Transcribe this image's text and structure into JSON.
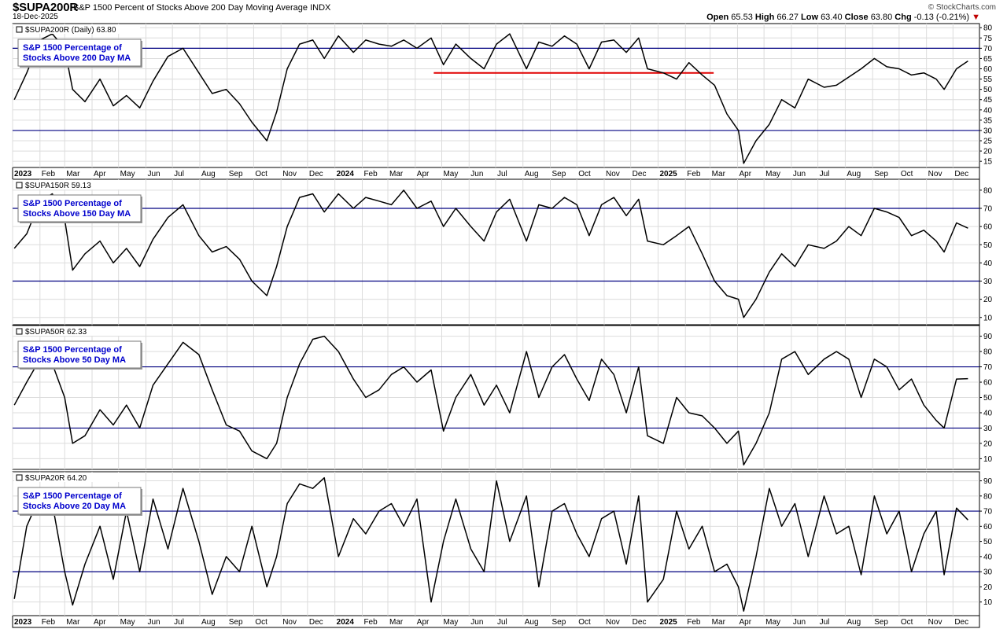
{
  "header": {
    "symbol": "$SUPA200R",
    "description": "S&P 1500 Percent of Stocks Above 200 Day Moving Average",
    "exchange": "INDX",
    "date": "18-Dec-2025",
    "source": "© StockCharts.com",
    "open_label": "Open",
    "open": "65.53",
    "high_label": "High",
    "high": "66.27",
    "low_label": "Low",
    "low": "63.40",
    "close_label": "Close",
    "close": "63.80",
    "chg_label": "Chg",
    "chg": "-0.13 (-0.21%)"
  },
  "colors": {
    "line": "#000000",
    "hline": "#000080",
    "grid": "#dcdcdc",
    "trend": "#e00000",
    "label_text": "#0000cc"
  },
  "chart_data": [
    {
      "type": "line",
      "panel_label": "$SUPA200R (Daily) 63.80",
      "annotation": [
        "S&P 1500 Percentage of",
        "Stocks Above 200 Day MA"
      ],
      "y_ticks": [
        15,
        20,
        25,
        30,
        35,
        40,
        45,
        50,
        55,
        60,
        65,
        70,
        75,
        80
      ],
      "ylim": [
        12,
        82
      ],
      "hlines": [
        30,
        70
      ],
      "trendline": {
        "x": [
          "2024-04-22",
          "2025-03-05"
        ],
        "y": [
          58,
          58
        ]
      },
      "x": [
        "2023-01-03",
        "2023-01-17",
        "2023-02-01",
        "2023-02-15",
        "2023-03-01",
        "2023-03-10",
        "2023-03-24",
        "2023-04-10",
        "2023-04-25",
        "2023-05-10",
        "2023-05-25",
        "2023-06-09",
        "2023-06-26",
        "2023-07-13",
        "2023-07-31",
        "2023-08-15",
        "2023-08-31",
        "2023-09-15",
        "2023-09-29",
        "2023-10-16",
        "2023-10-27",
        "2023-11-08",
        "2023-11-22",
        "2023-12-07",
        "2023-12-20",
        "2024-01-05",
        "2024-01-22",
        "2024-02-05",
        "2024-02-20",
        "2024-03-05",
        "2024-03-19",
        "2024-04-03",
        "2024-04-19",
        "2024-05-03",
        "2024-05-17",
        "2024-06-03",
        "2024-06-18",
        "2024-07-02",
        "2024-07-17",
        "2024-08-05",
        "2024-08-19",
        "2024-09-03",
        "2024-09-17",
        "2024-10-01",
        "2024-10-15",
        "2024-10-29",
        "2024-11-12",
        "2024-11-26",
        "2024-12-10",
        "2024-12-20",
        "2025-01-07",
        "2025-01-22",
        "2025-02-05",
        "2025-02-20",
        "2025-03-06",
        "2025-03-20",
        "2025-04-02",
        "2025-04-08",
        "2025-04-22",
        "2025-05-07",
        "2025-05-21",
        "2025-06-05",
        "2025-06-20",
        "2025-07-08",
        "2025-07-22",
        "2025-08-05",
        "2025-08-19",
        "2025-09-03",
        "2025-09-17",
        "2025-10-01",
        "2025-10-15",
        "2025-10-29",
        "2025-11-12",
        "2025-11-21",
        "2025-12-05",
        "2025-12-18"
      ],
      "y": [
        45,
        58,
        74,
        77,
        70,
        50,
        44,
        55,
        42,
        47,
        41,
        54,
        66,
        70,
        58,
        48,
        50,
        43,
        34,
        25,
        39,
        60,
        72,
        74,
        65,
        76,
        68,
        74,
        72,
        71,
        74,
        70,
        75,
        62,
        72,
        65,
        60,
        72,
        77,
        60,
        73,
        71,
        76,
        72,
        60,
        73,
        74,
        68,
        75,
        60,
        58,
        55,
        63,
        57,
        52,
        38,
        30,
        14,
        25,
        33,
        45,
        41,
        55,
        51,
        52,
        56,
        60,
        65,
        61,
        60,
        57,
        58,
        55,
        50,
        60,
        63.8
      ]
    },
    {
      "type": "line",
      "panel_label": "$SUPA150R 59.13",
      "annotation": [
        "S&P 1500 Percentage of",
        "Stocks Above 150 Day MA"
      ],
      "y_ticks": [
        10,
        20,
        30,
        40,
        50,
        60,
        70,
        80
      ],
      "ylim": [
        6,
        86
      ],
      "hlines": [
        30,
        70
      ],
      "x": [
        "2023-01-03",
        "2023-01-17",
        "2023-02-01",
        "2023-02-15",
        "2023-03-01",
        "2023-03-10",
        "2023-03-24",
        "2023-04-10",
        "2023-04-25",
        "2023-05-10",
        "2023-05-25",
        "2023-06-09",
        "2023-06-26",
        "2023-07-13",
        "2023-07-31",
        "2023-08-15",
        "2023-08-31",
        "2023-09-15",
        "2023-09-29",
        "2023-10-16",
        "2023-10-27",
        "2023-11-08",
        "2023-11-22",
        "2023-12-07",
        "2023-12-20",
        "2024-01-05",
        "2024-01-22",
        "2024-02-05",
        "2024-02-20",
        "2024-03-05",
        "2024-03-19",
        "2024-04-03",
        "2024-04-19",
        "2024-05-03",
        "2024-05-17",
        "2024-06-03",
        "2024-06-18",
        "2024-07-02",
        "2024-07-17",
        "2024-08-05",
        "2024-08-19",
        "2024-09-03",
        "2024-09-17",
        "2024-10-01",
        "2024-10-15",
        "2024-10-29",
        "2024-11-12",
        "2024-11-26",
        "2024-12-10",
        "2024-12-20",
        "2025-01-07",
        "2025-01-22",
        "2025-02-05",
        "2025-02-20",
        "2025-03-06",
        "2025-03-20",
        "2025-04-02",
        "2025-04-08",
        "2025-04-22",
        "2025-05-07",
        "2025-05-21",
        "2025-06-05",
        "2025-06-20",
        "2025-07-08",
        "2025-07-22",
        "2025-08-05",
        "2025-08-19",
        "2025-09-03",
        "2025-09-17",
        "2025-10-01",
        "2025-10-15",
        "2025-10-29",
        "2025-11-12",
        "2025-11-21",
        "2025-12-05",
        "2025-12-18"
      ],
      "y": [
        48,
        56,
        74,
        78,
        64,
        36,
        45,
        52,
        40,
        48,
        38,
        53,
        65,
        72,
        55,
        46,
        49,
        42,
        30,
        22,
        38,
        60,
        76,
        78,
        68,
        78,
        70,
        76,
        74,
        72,
        80,
        70,
        74,
        60,
        70,
        60,
        52,
        68,
        75,
        52,
        72,
        70,
        76,
        72,
        55,
        72,
        76,
        66,
        75,
        52,
        50,
        55,
        60,
        45,
        30,
        22,
        20,
        10,
        20,
        35,
        45,
        38,
        50,
        48,
        52,
        60,
        55,
        70,
        68,
        65,
        55,
        58,
        52,
        46,
        62,
        59.1
      ]
    },
    {
      "type": "line",
      "panel_label": "$SUPA50R 62.33",
      "annotation": [
        "S&P 1500 Percentage of",
        "Stocks Above 50 Day MA"
      ],
      "y_ticks": [
        10,
        20,
        30,
        40,
        50,
        60,
        70,
        80,
        90
      ],
      "ylim": [
        3,
        97
      ],
      "hlines": [
        30,
        70
      ],
      "x": [
        "2023-01-03",
        "2023-01-17",
        "2023-02-01",
        "2023-02-15",
        "2023-03-01",
        "2023-03-10",
        "2023-03-24",
        "2023-04-10",
        "2023-04-25",
        "2023-05-10",
        "2023-05-25",
        "2023-06-09",
        "2023-06-26",
        "2023-07-13",
        "2023-07-31",
        "2023-08-15",
        "2023-08-31",
        "2023-09-15",
        "2023-09-29",
        "2023-10-16",
        "2023-10-27",
        "2023-11-08",
        "2023-11-22",
        "2023-12-07",
        "2023-12-20",
        "2024-01-05",
        "2024-01-22",
        "2024-02-05",
        "2024-02-20",
        "2024-03-05",
        "2024-03-19",
        "2024-04-03",
        "2024-04-19",
        "2024-05-03",
        "2024-05-17",
        "2024-06-03",
        "2024-06-18",
        "2024-07-02",
        "2024-07-17",
        "2024-08-05",
        "2024-08-19",
        "2024-09-03",
        "2024-09-17",
        "2024-10-01",
        "2024-10-15",
        "2024-10-29",
        "2024-11-12",
        "2024-11-26",
        "2024-12-10",
        "2024-12-20",
        "2025-01-07",
        "2025-01-22",
        "2025-02-05",
        "2025-02-20",
        "2025-03-06",
        "2025-03-20",
        "2025-04-02",
        "2025-04-08",
        "2025-04-22",
        "2025-05-07",
        "2025-05-21",
        "2025-06-05",
        "2025-06-20",
        "2025-07-08",
        "2025-07-22",
        "2025-08-05",
        "2025-08-19",
        "2025-09-03",
        "2025-09-17",
        "2025-10-01",
        "2025-10-15",
        "2025-10-29",
        "2025-11-12",
        "2025-11-21",
        "2025-12-05",
        "2025-12-18"
      ],
      "y": [
        45,
        60,
        75,
        72,
        50,
        20,
        25,
        42,
        32,
        45,
        30,
        58,
        72,
        86,
        78,
        55,
        32,
        28,
        15,
        10,
        20,
        50,
        72,
        88,
        90,
        80,
        62,
        50,
        55,
        65,
        70,
        60,
        68,
        28,
        50,
        65,
        45,
        58,
        40,
        80,
        50,
        70,
        78,
        62,
        48,
        75,
        65,
        40,
        70,
        25,
        20,
        50,
        40,
        38,
        30,
        20,
        28,
        6,
        20,
        40,
        75,
        80,
        65,
        75,
        80,
        75,
        50,
        75,
        70,
        55,
        62,
        45,
        35,
        30,
        62,
        62.3
      ]
    },
    {
      "type": "line",
      "panel_label": "$SUPA20R 64.20",
      "annotation": [
        "S&P 1500 Percentage of",
        "Stocks Above 20 Day MA"
      ],
      "y_ticks": [
        10,
        20,
        30,
        40,
        50,
        60,
        70,
        80,
        90
      ],
      "ylim": [
        1,
        96
      ],
      "hlines": [
        30,
        70
      ],
      "x": [
        "2023-01-03",
        "2023-01-17",
        "2023-02-01",
        "2023-02-15",
        "2023-03-01",
        "2023-03-10",
        "2023-03-24",
        "2023-04-10",
        "2023-04-25",
        "2023-05-10",
        "2023-05-25",
        "2023-06-09",
        "2023-06-26",
        "2023-07-13",
        "2023-07-31",
        "2023-08-15",
        "2023-08-31",
        "2023-09-15",
        "2023-09-29",
        "2023-10-16",
        "2023-10-27",
        "2023-11-08",
        "2023-11-22",
        "2023-12-07",
        "2023-12-20",
        "2024-01-05",
        "2024-01-22",
        "2024-02-05",
        "2024-02-20",
        "2024-03-05",
        "2024-03-19",
        "2024-04-03",
        "2024-04-19",
        "2024-05-03",
        "2024-05-17",
        "2024-06-03",
        "2024-06-18",
        "2024-07-02",
        "2024-07-17",
        "2024-08-05",
        "2024-08-19",
        "2024-09-03",
        "2024-09-17",
        "2024-10-01",
        "2024-10-15",
        "2024-10-29",
        "2024-11-12",
        "2024-11-26",
        "2024-12-10",
        "2024-12-20",
        "2025-01-07",
        "2025-01-22",
        "2025-02-05",
        "2025-02-20",
        "2025-03-06",
        "2025-03-20",
        "2025-04-02",
        "2025-04-08",
        "2025-04-22",
        "2025-05-07",
        "2025-05-21",
        "2025-06-05",
        "2025-06-20",
        "2025-07-08",
        "2025-07-22",
        "2025-08-05",
        "2025-08-19",
        "2025-09-03",
        "2025-09-17",
        "2025-10-01",
        "2025-10-15",
        "2025-10-29",
        "2025-11-12",
        "2025-11-21",
        "2025-12-05",
        "2025-12-18"
      ],
      "y": [
        12,
        60,
        80,
        75,
        30,
        8,
        35,
        60,
        25,
        70,
        30,
        78,
        45,
        85,
        50,
        15,
        40,
        30,
        60,
        20,
        40,
        75,
        88,
        85,
        92,
        40,
        65,
        55,
        70,
        75,
        60,
        78,
        10,
        50,
        78,
        45,
        30,
        90,
        50,
        80,
        20,
        70,
        75,
        55,
        40,
        65,
        70,
        35,
        80,
        10,
        25,
        70,
        45,
        60,
        30,
        35,
        20,
        4,
        40,
        85,
        60,
        75,
        40,
        80,
        55,
        60,
        28,
        80,
        55,
        70,
        30,
        55,
        70,
        28,
        72,
        64.2
      ]
    }
  ],
  "x_axis_labels": [
    {
      "date": "2023-01-01",
      "label": "2023",
      "bold": true
    },
    {
      "date": "2023-02-01",
      "label": "Feb"
    },
    {
      "date": "2023-03-01",
      "label": "Mar"
    },
    {
      "date": "2023-04-01",
      "label": "Apr"
    },
    {
      "date": "2023-05-01",
      "label": "May"
    },
    {
      "date": "2023-06-01",
      "label": "Jun"
    },
    {
      "date": "2023-07-01",
      "label": "Jul"
    },
    {
      "date": "2023-08-01",
      "label": "Aug"
    },
    {
      "date": "2023-09-01",
      "label": "Sep"
    },
    {
      "date": "2023-10-01",
      "label": "Oct"
    },
    {
      "date": "2023-11-01",
      "label": "Nov"
    },
    {
      "date": "2023-12-01",
      "label": "Dec"
    },
    {
      "date": "2024-01-01",
      "label": "2024",
      "bold": true
    },
    {
      "date": "2024-02-01",
      "label": "Feb"
    },
    {
      "date": "2024-03-01",
      "label": "Mar"
    },
    {
      "date": "2024-04-01",
      "label": "Apr"
    },
    {
      "date": "2024-05-01",
      "label": "May"
    },
    {
      "date": "2024-06-01",
      "label": "Jun"
    },
    {
      "date": "2024-07-01",
      "label": "Jul"
    },
    {
      "date": "2024-08-01",
      "label": "Aug"
    },
    {
      "date": "2024-09-01",
      "label": "Sep"
    },
    {
      "date": "2024-10-01",
      "label": "Oct"
    },
    {
      "date": "2024-11-01",
      "label": "Nov"
    },
    {
      "date": "2024-12-01",
      "label": "Dec"
    },
    {
      "date": "2025-01-01",
      "label": "2025",
      "bold": true
    },
    {
      "date": "2025-02-01",
      "label": "Feb"
    },
    {
      "date": "2025-03-01",
      "label": "Mar"
    },
    {
      "date": "2025-04-01",
      "label": "Apr"
    },
    {
      "date": "2025-05-01",
      "label": "May"
    },
    {
      "date": "2025-06-01",
      "label": "Jun"
    },
    {
      "date": "2025-07-01",
      "label": "Jul"
    },
    {
      "date": "2025-08-01",
      "label": "Aug"
    },
    {
      "date": "2025-09-01",
      "label": "Sep"
    },
    {
      "date": "2025-10-01",
      "label": "Oct"
    },
    {
      "date": "2025-11-01",
      "label": "Nov"
    },
    {
      "date": "2025-12-01",
      "label": "Dec"
    }
  ],
  "x_range": [
    "2023-01-01",
    "2025-12-31"
  ]
}
